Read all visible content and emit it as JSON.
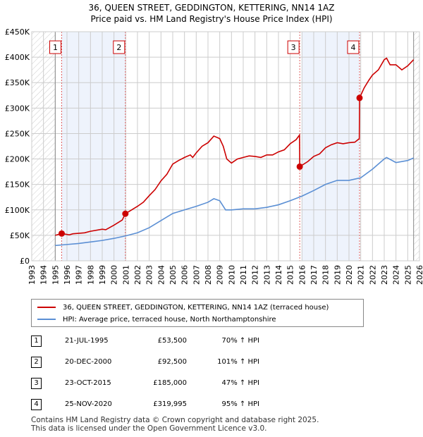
{
  "title": "36, QUEEN STREET, GEDDINGTON, KETTERING, NN14 1AZ",
  "subtitle": "Price paid vs. HM Land Registry's House Price Index (HPI)",
  "chart_data": {
    "type": "line",
    "xlim": [
      1993,
      2026
    ],
    "ylim": [
      0,
      450000
    ],
    "yticks": [
      0,
      50000,
      100000,
      150000,
      200000,
      250000,
      300000,
      350000,
      400000,
      450000
    ],
    "ytick_labels": [
      "£0",
      "£50K",
      "£100K",
      "£150K",
      "£200K",
      "£250K",
      "£300K",
      "£350K",
      "£400K",
      "£450K"
    ],
    "xticks": [
      1993,
      1994,
      1995,
      1996,
      1997,
      1998,
      1999,
      2000,
      2001,
      2002,
      2003,
      2004,
      2005,
      2006,
      2007,
      2008,
      2009,
      2010,
      2011,
      2012,
      2013,
      2014,
      2015,
      2016,
      2017,
      2018,
      2019,
      2020,
      2021,
      2022,
      2023,
      2024,
      2025,
      2026
    ],
    "grid": true,
    "colors": {
      "property": "#cc0000",
      "hpi": "#5b8fd4",
      "shade": "#eef3fc"
    },
    "shaded_periods": [
      [
        1995.55,
        2000.97
      ],
      [
        2016.0,
        2020.9
      ]
    ],
    "hatched_ranges": [
      [
        1993,
        1995
      ],
      [
        2025.5,
        2026
      ]
    ],
    "series": [
      {
        "name": "36, QUEEN STREET, GEDDINGTON, KETTERING, NN14 1AZ (terraced house)",
        "x": [
          1995.0,
          1995.55,
          1996.2,
          1996.5,
          1997.5,
          1998,
          1999,
          1999.3,
          2000,
          2000.7,
          2000.97,
          2001.5,
          2002,
          2002.5,
          2003,
          2003.5,
          2004,
          2004.5,
          2005,
          2005.5,
          2006,
          2006.5,
          2006.7,
          2007,
          2007.5,
          2008,
          2008.5,
          2009,
          2009.3,
          2009.6,
          2010,
          2010.5,
          2011,
          2011.5,
          2012,
          2012.5,
          2013,
          2013.5,
          2014,
          2014.5,
          2015,
          2015.5,
          2015.79,
          2015.81,
          2016.5,
          2017,
          2017.5,
          2018,
          2018.5,
          2019,
          2019.5,
          2020,
          2020.5,
          2020.88,
          2020.9,
          2021.3,
          2021.7,
          2022,
          2022.5,
          2023,
          2023.2,
          2023.5,
          2024,
          2024.5,
          2025,
          2025.5
        ],
        "y": [
          50000,
          53500,
          51000,
          53000,
          55000,
          58000,
          62000,
          61000,
          70000,
          80000,
          92500,
          100000,
          107000,
          115000,
          128000,
          140000,
          157000,
          170000,
          190000,
          197000,
          203000,
          208000,
          203000,
          212000,
          225000,
          232000,
          245000,
          240000,
          225000,
          200000,
          192000,
          200000,
          203000,
          206000,
          205000,
          203000,
          208000,
          208000,
          214000,
          218000,
          230000,
          238000,
          247000,
          185000,
          195000,
          205000,
          210000,
          222000,
          228000,
          232000,
          230000,
          232000,
          233000,
          240000,
          319995,
          340000,
          355000,
          365000,
          375000,
          395000,
          398000,
          385000,
          385000,
          375000,
          383000,
          395000
        ]
      },
      {
        "name": "HPI: Average price, terraced house, North Northamptonshire",
        "x": [
          1995,
          1996,
          1997,
          1998,
          1999,
          2000,
          2001,
          2002,
          2003,
          2004,
          2005,
          2006,
          2007,
          2008,
          2008.5,
          2009,
          2009.5,
          2010,
          2011,
          2012,
          2013,
          2014,
          2015,
          2016,
          2017,
          2018,
          2019,
          2020,
          2021,
          2022,
          2023,
          2023.2,
          2024,
          2025,
          2025.5
        ],
        "y": [
          30000,
          32000,
          34000,
          37000,
          40000,
          44000,
          49000,
          55000,
          65000,
          79000,
          93000,
          100000,
          107000,
          115000,
          122000,
          118000,
          100000,
          100000,
          102000,
          102000,
          105000,
          110000,
          118000,
          127000,
          138000,
          150000,
          158000,
          158000,
          163000,
          180000,
          200000,
          203000,
          193000,
          197000,
          202000
        ]
      }
    ],
    "sales": [
      {
        "label": "1",
        "x": 1995.55,
        "y": 53500
      },
      {
        "label": "2",
        "x": 2000.97,
        "y": 92500
      },
      {
        "label": "3",
        "x": 2015.81,
        "y": 185000
      },
      {
        "label": "4",
        "x": 2020.9,
        "y": 319995
      }
    ]
  },
  "legend": {
    "property": "36, QUEEN STREET, GEDDINGTON, KETTERING, NN14 1AZ (terraced house)",
    "hpi": "HPI: Average price, terraced house, North Northamptonshire"
  },
  "table": [
    {
      "num": "1",
      "date": "21-JUL-1995",
      "price": "£53,500",
      "hpi": "70% ↑ HPI"
    },
    {
      "num": "2",
      "date": "20-DEC-2000",
      "price": "£92,500",
      "hpi": "101% ↑ HPI"
    },
    {
      "num": "3",
      "date": "23-OCT-2015",
      "price": "£185,000",
      "hpi": "47% ↑ HPI"
    },
    {
      "num": "4",
      "date": "25-NOV-2020",
      "price": "£319,995",
      "hpi": "95% ↑ HPI"
    }
  ],
  "footer": [
    "Contains HM Land Registry data © Crown copyright and database right 2025.",
    "This data is licensed under the Open Government Licence v3.0."
  ]
}
